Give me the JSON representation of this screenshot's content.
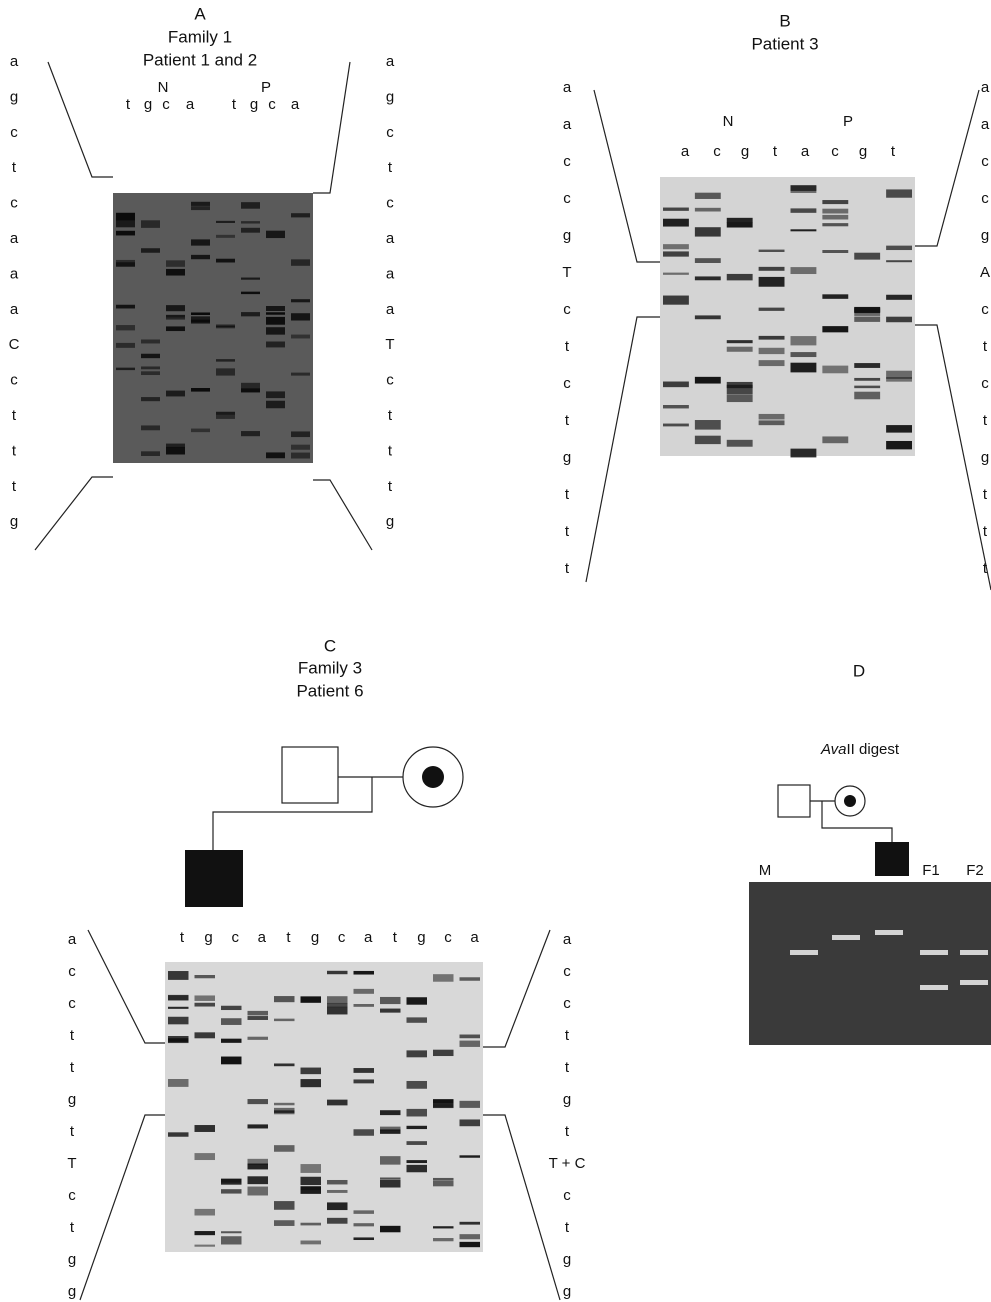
{
  "panels": [
    {
      "label": "A",
      "lines": [
        "Family 1",
        "Patient 1 and 2"
      ],
      "groups": [
        "N",
        "P"
      ],
      "lanes": [
        "t",
        "g",
        "c",
        "a",
        "t",
        "g",
        "c",
        "a"
      ],
      "left_sequence": [
        "a",
        "g",
        "c",
        "t",
        "c",
        "a",
        "a",
        "a",
        "C",
        "c",
        "t",
        "t",
        "t",
        "g"
      ],
      "right_sequence": [
        "a",
        "g",
        "c",
        "t",
        "c",
        "a",
        "a",
        "a",
        "T",
        "c",
        "t",
        "t",
        "t",
        "g"
      ]
    },
    {
      "label": "B",
      "lines": [
        "Patient 3"
      ],
      "groups": [
        "N",
        "P"
      ],
      "lanes": [
        "a",
        "c",
        "g",
        "t",
        "a",
        "c",
        "g",
        "t"
      ],
      "left_sequence": [
        "a",
        "a",
        "c",
        "c",
        "g",
        "T",
        "c",
        "t",
        "c",
        "t",
        "g",
        "t",
        "t",
        "t"
      ],
      "right_sequence": [
        "a",
        "a",
        "c",
        "c",
        "g",
        "A",
        "c",
        "t",
        "c",
        "t",
        "g",
        "t",
        "t",
        "t"
      ]
    },
    {
      "label": "C",
      "lines": [
        "Family 3",
        "Patient 6"
      ],
      "groups": [],
      "lanes": [
        "t",
        "g",
        "c",
        "a",
        "t",
        "g",
        "c",
        "a",
        "t",
        "g",
        "c",
        "a"
      ],
      "left_sequence": [
        "a",
        "c",
        "c",
        "t",
        "t",
        "g",
        "t",
        "T",
        "c",
        "t",
        "g",
        "g"
      ],
      "right_sequence": [
        "a",
        "c",
        "c",
        "t",
        "t",
        "g",
        "t",
        "T + C",
        "c",
        "t",
        "g",
        "g"
      ]
    }
  ],
  "panel_d": {
    "label": "D",
    "digest_italic": "Ava",
    "digest_rest": "II digest",
    "lane_labels": [
      "M",
      "F1",
      "F2"
    ]
  }
}
